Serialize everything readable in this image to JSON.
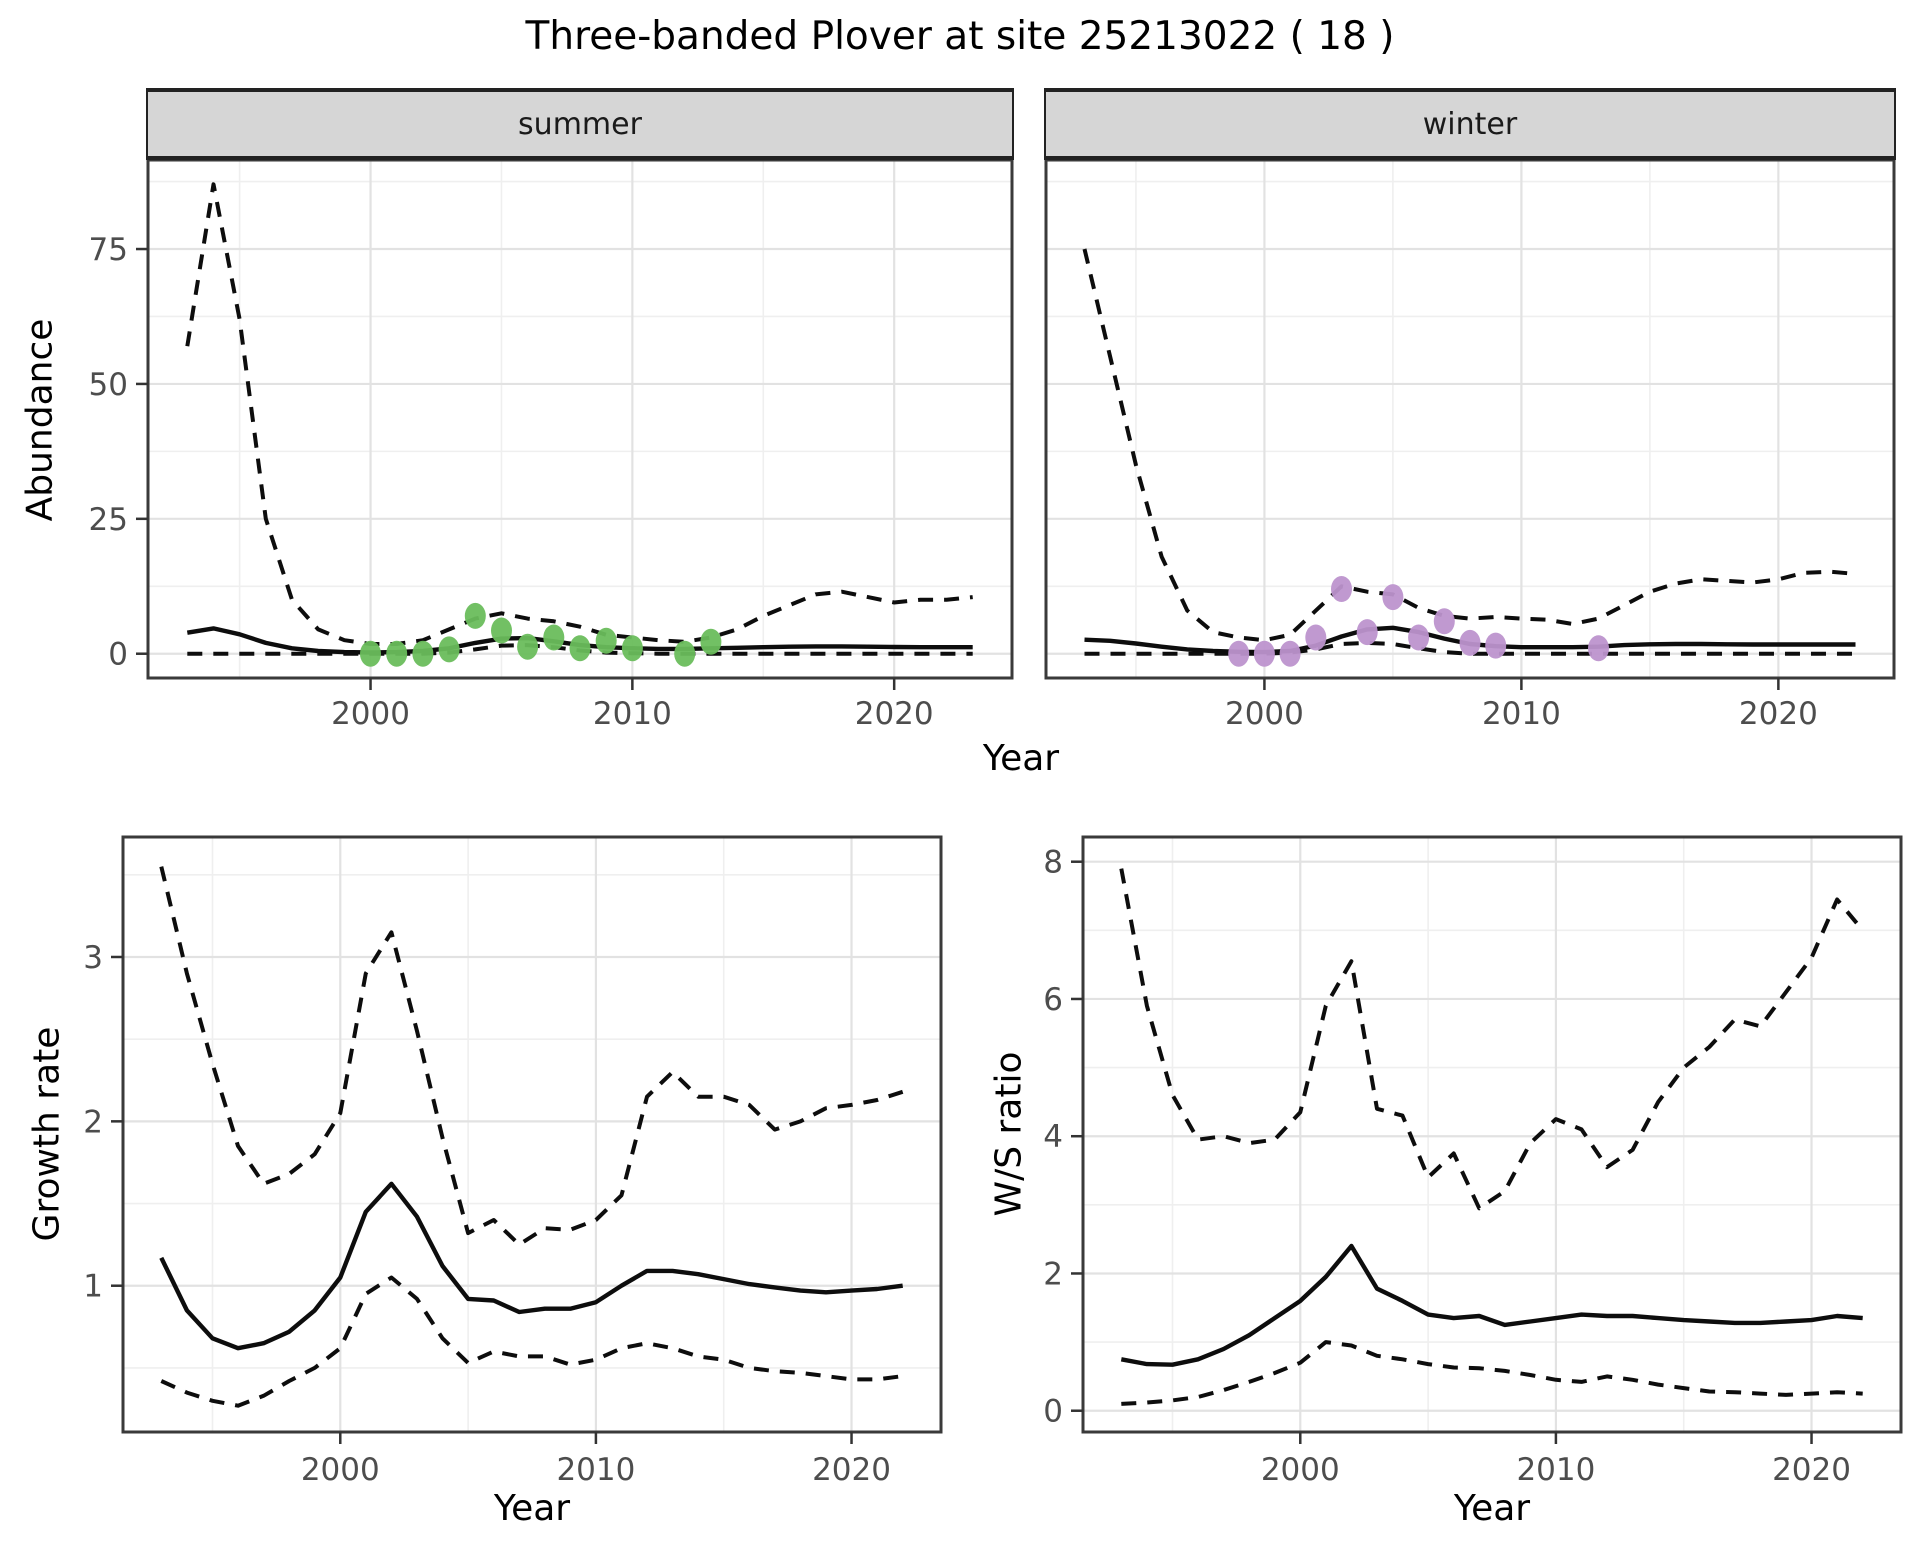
{
  "figure": {
    "title": "Three-banded Plover at site 25213022 ( 18 )",
    "abundance_ylabel": "Abundance",
    "growth_ylabel": "Growth rate",
    "ws_ylabel": "W/S ratio",
    "top_xlabel": "Year",
    "growth_xlabel": "Year",
    "ws_xlabel": "Year",
    "facet_summer": "summer",
    "facet_winter": "winter"
  },
  "colors": {
    "summer_points": "#6abd5c",
    "winter_points": "#bd93ce",
    "line": "#0d0d0d",
    "grid_major": "#e2e2e2",
    "grid_minor": "#efefef",
    "panel_border": "#3a3a3a",
    "tick_text": "#4d4d4d",
    "strip_bg": "#d6d6d6"
  },
  "chart_data": [
    {
      "id": "abundance_summer",
      "type": "line",
      "facet": "summer",
      "ylabel": "Abundance",
      "xlabel": "Year",
      "xlim": [
        1991.5,
        2024.5
      ],
      "ylim": [
        -4.5,
        91.5
      ],
      "xticks": [
        2000,
        2010,
        2020
      ],
      "yticks": [
        0,
        25,
        50,
        75
      ],
      "x_minor": [
        1995,
        2005,
        2015
      ],
      "y_minor": [
        12.5,
        37.5,
        62.5,
        87.5
      ],
      "grid": true,
      "show_yticklabels": true,
      "years": [
        1993,
        1994,
        1995,
        1996,
        1997,
        1998,
        1999,
        2000,
        2001,
        2002,
        2003,
        2004,
        2005,
        2006,
        2007,
        2008,
        2009,
        2010,
        2011,
        2012,
        2013,
        2014,
        2015,
        2016,
        2017,
        2018,
        2019,
        2020,
        2021,
        2022,
        2023
      ],
      "series": [
        {
          "name": "mean",
          "style": "solid",
          "values": [
            3.9,
            4.7,
            3.6,
            2.0,
            1.0,
            0.5,
            0.3,
            0.25,
            0.3,
            0.5,
            1.0,
            2.0,
            2.8,
            2.9,
            2.3,
            1.6,
            1.2,
            1.0,
            0.9,
            0.9,
            1.0,
            1.1,
            1.2,
            1.3,
            1.35,
            1.35,
            1.3,
            1.25,
            1.2,
            1.2,
            1.2
          ]
        },
        {
          "name": "upper_ci",
          "style": "dashed",
          "values": [
            57,
            87,
            62,
            25,
            10,
            4.5,
            2.5,
            1.8,
            1.8,
            2.5,
            4.5,
            6.5,
            7.5,
            6.5,
            6.0,
            5.0,
            3.5,
            3.0,
            2.5,
            2.2,
            3.0,
            4.5,
            7.0,
            9.0,
            11.0,
            11.5,
            10.5,
            9.5,
            10.0,
            10.0,
            10.5
          ]
        },
        {
          "name": "lower_ci",
          "style": "dashed",
          "values": [
            0,
            0,
            0,
            0,
            0,
            0,
            0,
            0,
            0,
            0,
            0.2,
            0.8,
            1.5,
            1.6,
            1.2,
            0.6,
            0.2,
            0.1,
            0,
            0,
            0,
            0,
            0,
            0,
            0,
            0,
            0,
            0,
            0,
            0,
            0
          ]
        }
      ],
      "points": {
        "name": "observed_counts_summer",
        "color": "#6abd5c",
        "data": [
          [
            2000,
            0
          ],
          [
            2001,
            0
          ],
          [
            2002,
            0
          ],
          [
            2003,
            0.8
          ],
          [
            2004,
            7
          ],
          [
            2005,
            4.3
          ],
          [
            2006,
            1.3
          ],
          [
            2007,
            3
          ],
          [
            2008,
            1
          ],
          [
            2009,
            2.4
          ],
          [
            2010,
            1
          ],
          [
            2012,
            0
          ],
          [
            2013,
            2.2
          ]
        ]
      }
    },
    {
      "id": "abundance_winter",
      "type": "line",
      "facet": "winter",
      "ylabel": "Abundance",
      "xlabel": "Year",
      "xlim": [
        1991.5,
        2024.5
      ],
      "ylim": [
        -4.5,
        91.5
      ],
      "xticks": [
        2000,
        2010,
        2020
      ],
      "yticks": [
        0,
        25,
        50,
        75
      ],
      "x_minor": [
        1995,
        2005,
        2015
      ],
      "y_minor": [
        12.5,
        37.5,
        62.5,
        87.5
      ],
      "grid": true,
      "show_yticklabels": false,
      "years": [
        1993,
        1994,
        1995,
        1996,
        1997,
        1998,
        1999,
        2000,
        2001,
        2002,
        2003,
        2004,
        2005,
        2006,
        2007,
        2008,
        2009,
        2010,
        2011,
        2012,
        2013,
        2014,
        2015,
        2016,
        2017,
        2018,
        2019,
        2020,
        2021,
        2022,
        2023
      ],
      "series": [
        {
          "name": "mean",
          "style": "solid",
          "values": [
            2.6,
            2.4,
            1.9,
            1.3,
            0.8,
            0.5,
            0.35,
            0.3,
            0.5,
            1.5,
            3.2,
            4.5,
            4.8,
            4.0,
            2.8,
            1.8,
            1.4,
            1.2,
            1.2,
            1.2,
            1.3,
            1.6,
            1.75,
            1.8,
            1.8,
            1.75,
            1.7,
            1.7,
            1.7,
            1.7,
            1.7
          ]
        },
        {
          "name": "upper_ci",
          "style": "dashed",
          "values": [
            75,
            55,
            35,
            18,
            8,
            4,
            3,
            2.5,
            3.5,
            8,
            12.5,
            11.5,
            11,
            8.5,
            7,
            6.5,
            6.8,
            6.5,
            6.3,
            5.5,
            6.5,
            9,
            11.5,
            13,
            13.8,
            13.5,
            13.2,
            13.8,
            15,
            15.2,
            14.8
          ]
        },
        {
          "name": "lower_ci",
          "style": "dashed",
          "values": [
            0,
            0,
            0,
            0,
            0,
            0,
            0,
            0,
            0.2,
            0.8,
            1.8,
            2.0,
            1.8,
            1.0,
            0.3,
            0,
            0,
            0,
            0,
            0,
            0,
            0,
            0,
            0,
            0,
            0,
            0,
            0,
            0,
            0,
            0
          ]
        }
      ],
      "points": {
        "name": "observed_counts_winter",
        "color": "#bd93ce",
        "data": [
          [
            1999,
            0
          ],
          [
            2000,
            0
          ],
          [
            2001,
            0
          ],
          [
            2002,
            3
          ],
          [
            2003,
            12
          ],
          [
            2004,
            4
          ],
          [
            2005,
            10.5
          ],
          [
            2006,
            3
          ],
          [
            2007,
            6
          ],
          [
            2008,
            2
          ],
          [
            2009,
            1.5
          ],
          [
            2013,
            1
          ]
        ]
      }
    },
    {
      "id": "growth_rate",
      "type": "line",
      "ylabel": "Growth rate",
      "xlabel": "Year",
      "xlim": [
        1991.5,
        2023.5
      ],
      "ylim": [
        0.11,
        3.73
      ],
      "xticks": [
        2000,
        2010,
        2020
      ],
      "yticks": [
        1,
        2,
        3
      ],
      "x_minor": [
        1995,
        2005,
        2015
      ],
      "y_minor": [
        0.5,
        1.5,
        2.5,
        3.5
      ],
      "grid": true,
      "show_yticklabels": true,
      "years": [
        1993,
        1994,
        1995,
        1996,
        1997,
        1998,
        1999,
        2000,
        2001,
        2002,
        2003,
        2004,
        2005,
        2006,
        2007,
        2008,
        2009,
        2010,
        2011,
        2012,
        2013,
        2014,
        2015,
        2016,
        2017,
        2018,
        2019,
        2020,
        2021,
        2022
      ],
      "series": [
        {
          "name": "mean",
          "style": "solid",
          "values": [
            1.17,
            0.85,
            0.68,
            0.62,
            0.65,
            0.72,
            0.85,
            1.05,
            1.45,
            1.62,
            1.42,
            1.12,
            0.92,
            0.91,
            0.84,
            0.86,
            0.86,
            0.9,
            1.0,
            1.09,
            1.09,
            1.07,
            1.04,
            1.01,
            0.99,
            0.97,
            0.96,
            0.97,
            0.98,
            1.0
          ]
        },
        {
          "name": "upper_ci",
          "style": "dashed",
          "values": [
            3.55,
            2.9,
            2.35,
            1.85,
            1.62,
            1.68,
            1.8,
            2.05,
            2.9,
            3.15,
            2.55,
            1.9,
            1.32,
            1.4,
            1.25,
            1.35,
            1.34,
            1.4,
            1.55,
            2.15,
            2.3,
            2.15,
            2.15,
            2.1,
            1.95,
            2.0,
            2.08,
            2.1,
            2.13,
            2.18
          ]
        },
        {
          "name": "lower_ci",
          "style": "dashed",
          "values": [
            0.42,
            0.35,
            0.3,
            0.27,
            0.33,
            0.42,
            0.5,
            0.62,
            0.95,
            1.05,
            0.92,
            0.68,
            0.53,
            0.6,
            0.57,
            0.57,
            0.52,
            0.55,
            0.62,
            0.65,
            0.62,
            0.57,
            0.55,
            0.5,
            0.48,
            0.47,
            0.45,
            0.43,
            0.43,
            0.45
          ]
        }
      ]
    },
    {
      "id": "ws_ratio",
      "type": "line",
      "ylabel": "W/S ratio",
      "xlabel": "Year",
      "xlim": [
        1991.5,
        2023.5
      ],
      "ylim": [
        -0.31,
        8.36
      ],
      "xticks": [
        2000,
        2010,
        2020
      ],
      "yticks": [
        0,
        2,
        4,
        6,
        8
      ],
      "x_minor": [
        1995,
        2005,
        2015
      ],
      "y_minor": [
        1,
        3,
        5,
        7
      ],
      "grid": true,
      "show_yticklabels": true,
      "years": [
        1993,
        1994,
        1995,
        1996,
        1997,
        1998,
        1999,
        2000,
        2001,
        2002,
        2003,
        2004,
        2005,
        2006,
        2007,
        2008,
        2009,
        2010,
        2011,
        2012,
        2013,
        2014,
        2015,
        2016,
        2017,
        2018,
        2019,
        2020,
        2021,
        2022
      ],
      "series": [
        {
          "name": "mean",
          "style": "solid",
          "values": [
            0.75,
            0.68,
            0.67,
            0.75,
            0.9,
            1.1,
            1.35,
            1.6,
            1.95,
            2.4,
            1.78,
            1.6,
            1.4,
            1.35,
            1.38,
            1.25,
            1.3,
            1.35,
            1.4,
            1.38,
            1.38,
            1.35,
            1.32,
            1.3,
            1.28,
            1.28,
            1.3,
            1.32,
            1.38,
            1.35
          ]
        },
        {
          "name": "upper_ci",
          "style": "dashed",
          "values": [
            7.9,
            5.9,
            4.6,
            3.95,
            4.0,
            3.9,
            3.95,
            4.35,
            5.9,
            6.55,
            4.4,
            4.3,
            3.4,
            3.75,
            2.95,
            3.2,
            3.9,
            4.25,
            4.1,
            3.55,
            3.8,
            4.5,
            5.0,
            5.3,
            5.7,
            5.6,
            6.1,
            6.6,
            7.45,
            7.0
          ]
        },
        {
          "name": "lower_ci",
          "style": "dashed",
          "values": [
            0.1,
            0.12,
            0.15,
            0.2,
            0.3,
            0.42,
            0.55,
            0.7,
            1.0,
            0.95,
            0.8,
            0.75,
            0.68,
            0.63,
            0.62,
            0.58,
            0.52,
            0.45,
            0.42,
            0.5,
            0.45,
            0.38,
            0.33,
            0.28,
            0.27,
            0.25,
            0.23,
            0.25,
            0.27,
            0.25
          ]
        }
      ]
    }
  ]
}
